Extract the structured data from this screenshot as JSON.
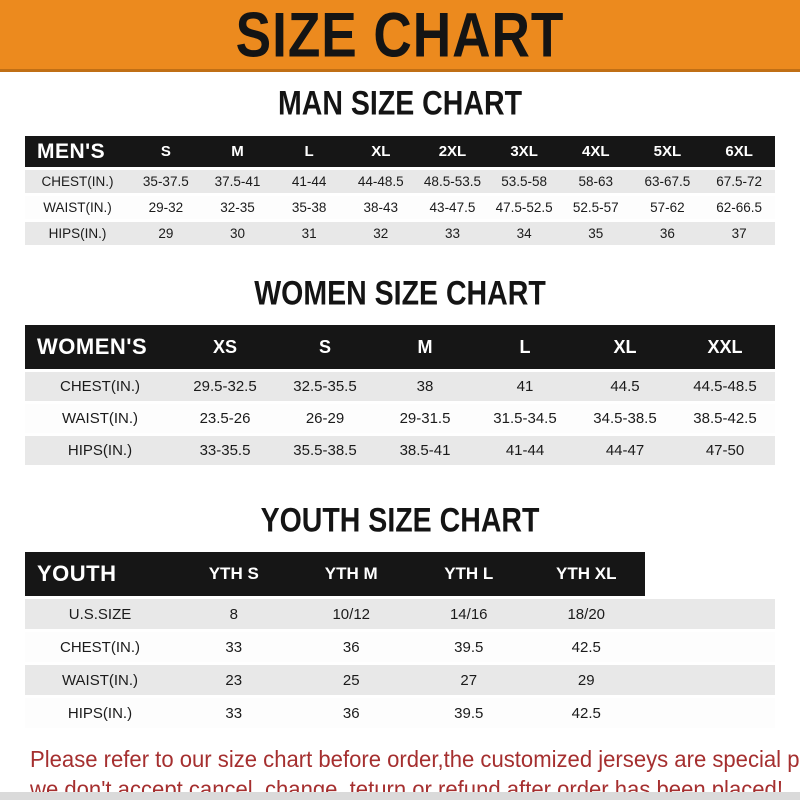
{
  "banner": {
    "title": "SIZE CHART",
    "bg_color": "#EC8A1E",
    "text_color": "#141414"
  },
  "sections": [
    {
      "id": "men",
      "heading": "MAN SIZE CHART",
      "table": {
        "corner_label": "MEN'S",
        "columns": [
          "S",
          "M",
          "L",
          "XL",
          "2XL",
          "3XL",
          "4XL",
          "5XL",
          "6XL"
        ],
        "rows": [
          {
            "label": "CHEST(IN.)",
            "values": [
              "35-37.5",
              "37.5-41",
              "41-44",
              "44-48.5",
              "48.5-53.5",
              "53.5-58",
              "58-63",
              "63-67.5",
              "67.5-72"
            ]
          },
          {
            "label": "WAIST(IN.)",
            "values": [
              "29-32",
              "32-35",
              "35-38",
              "38-43",
              "43-47.5",
              "47.5-52.5",
              "52.5-57",
              "57-62",
              "62-66.5"
            ]
          },
          {
            "label": "HIPS(IN.)",
            "values": [
              "29",
              "30",
              "31",
              "32",
              "33",
              "34",
              "35",
              "36",
              "37"
            ]
          }
        ]
      }
    },
    {
      "id": "women",
      "heading": "WOMEN SIZE CHART",
      "table": {
        "corner_label": "WOMEN'S",
        "columns": [
          "XS",
          "S",
          "M",
          "L",
          "XL",
          "XXL"
        ],
        "rows": [
          {
            "label": "CHEST(IN.)",
            "values": [
              "29.5-32.5",
              "32.5-35.5",
              "38",
              "41",
              "44.5",
              "44.5-48.5"
            ]
          },
          {
            "label": "WAIST(IN.)",
            "values": [
              "23.5-26",
              "26-29",
              "29-31.5",
              "31.5-34.5",
              "34.5-38.5",
              "38.5-42.5"
            ]
          },
          {
            "label": "HIPS(IN.)",
            "values": [
              "33-35.5",
              "35.5-38.5",
              "38.5-41",
              "41-44",
              "44-47",
              "47-50"
            ]
          }
        ]
      }
    },
    {
      "id": "youth",
      "heading": "YOUTH SIZE CHART",
      "table": {
        "corner_label": "YOUTH",
        "columns": [
          "YTH S",
          "YTH M",
          "YTH L",
          "YTH XL"
        ],
        "rows": [
          {
            "label": "U.S.SIZE",
            "values": [
              "8",
              "10/12",
              "14/16",
              "18/20"
            ]
          },
          {
            "label": "CHEST(IN.)",
            "values": [
              "33",
              "36",
              "39.5",
              "42.5"
            ]
          },
          {
            "label": "WAIST(IN.)",
            "values": [
              "23",
              "25",
              "27",
              "29"
            ]
          },
          {
            "label": "HIPS(IN.)",
            "values": [
              "33",
              "36",
              "39.5",
              "42.5"
            ]
          }
        ]
      }
    }
  ],
  "footer": {
    "line1": "Please refer to our size chart before order,the customized jerseys are special products,",
    "line2": "we don't accept cancel, change, teturn or refund after order has been placed!",
    "text_color": "#A52F2F"
  }
}
